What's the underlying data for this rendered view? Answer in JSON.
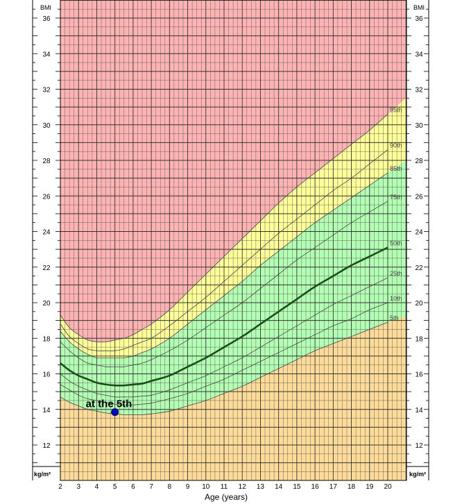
{
  "chart_data": {
    "type": "line",
    "xlabel": "Age (years)",
    "ylabel_left": "BMI",
    "ylabel_right": "BMI",
    "unit_left": "kg/m²",
    "unit_right": "kg/m²",
    "xlim": [
      2,
      20
    ],
    "ylim": [
      10,
      37
    ],
    "x_ticks": [
      2,
      3,
      4,
      5,
      6,
      7,
      8,
      9,
      10,
      11,
      12,
      13,
      14,
      15,
      16,
      17,
      18,
      19,
      20
    ],
    "y_ticks": [
      12,
      14,
      16,
      18,
      20,
      22,
      24,
      26,
      28,
      30,
      32,
      34,
      36
    ],
    "grid": true,
    "x": [
      2,
      2.5,
      3,
      3.5,
      4,
      4.5,
      5,
      5.5,
      6,
      6.5,
      7,
      8,
      9,
      10,
      11,
      12,
      13,
      14,
      15,
      16,
      17,
      18,
      19,
      20,
      21
    ],
    "zone_colors": {
      "obese": "#ffb3b3",
      "overweight": "#ffff99",
      "healthy": "#b3ffb3",
      "underweight": "#ffdb99"
    },
    "series": [
      {
        "name": "95th",
        "values": [
          19.3,
          18.6,
          18.2,
          17.9,
          17.8,
          17.8,
          17.9,
          18.0,
          18.2,
          18.5,
          18.8,
          19.6,
          20.6,
          21.6,
          22.6,
          23.6,
          24.6,
          25.6,
          26.5,
          27.3,
          28.1,
          28.9,
          29.7,
          30.6,
          31.5
        ]
      },
      {
        "name": "90th",
        "values": [
          18.8,
          18.1,
          17.7,
          17.4,
          17.3,
          17.3,
          17.3,
          17.4,
          17.6,
          17.8,
          18.0,
          18.7,
          19.5,
          20.3,
          21.2,
          22.1,
          23.0,
          23.9,
          24.7,
          25.5,
          26.3,
          27.0,
          27.8,
          28.6,
          29.4
        ]
      },
      {
        "name": "85th",
        "values": [
          18.4,
          17.8,
          17.4,
          17.1,
          16.9,
          16.9,
          16.9,
          16.9,
          17.0,
          17.2,
          17.4,
          18.0,
          18.8,
          19.6,
          20.4,
          21.2,
          22.1,
          22.9,
          23.7,
          24.5,
          25.2,
          25.9,
          26.6,
          27.3,
          28.0
        ]
      },
      {
        "name": "75th",
        "values": [
          17.8,
          17.3,
          16.9,
          16.6,
          16.5,
          16.4,
          16.4,
          16.4,
          16.5,
          16.6,
          16.8,
          17.3,
          17.9,
          18.6,
          19.3,
          20.0,
          20.8,
          21.6,
          22.4,
          23.1,
          23.8,
          24.5,
          25.1,
          25.7,
          26.3
        ]
      },
      {
        "name": "50th",
        "values": [
          16.6,
          16.2,
          15.9,
          15.7,
          15.5,
          15.4,
          15.35,
          15.35,
          15.4,
          15.45,
          15.6,
          15.9,
          16.4,
          16.9,
          17.5,
          18.1,
          18.8,
          19.5,
          20.2,
          20.9,
          21.5,
          22.1,
          22.6,
          23.1,
          23.6
        ]
      },
      {
        "name": "25th",
        "values": [
          16.0,
          15.6,
          15.3,
          15.1,
          14.9,
          14.8,
          14.7,
          14.7,
          14.7,
          14.75,
          14.8,
          15.1,
          15.5,
          15.9,
          16.4,
          16.9,
          17.5,
          18.1,
          18.7,
          19.3,
          19.9,
          20.4,
          20.9,
          21.4,
          21.9
        ]
      },
      {
        "name": "10th",
        "values": [
          15.4,
          15.1,
          14.8,
          14.6,
          14.5,
          14.4,
          14.3,
          14.25,
          14.25,
          14.3,
          14.35,
          14.6,
          14.9,
          15.3,
          15.7,
          16.2,
          16.7,
          17.2,
          17.7,
          18.2,
          18.7,
          19.1,
          19.6,
          20.0,
          20.4
        ]
      },
      {
        "name": "5th",
        "values": [
          14.7,
          14.4,
          14.2,
          14.0,
          13.9,
          13.8,
          13.75,
          13.7,
          13.7,
          13.7,
          13.75,
          13.9,
          14.2,
          14.5,
          14.9,
          15.3,
          15.8,
          16.3,
          16.8,
          17.3,
          17.7,
          18.1,
          18.5,
          18.9,
          19.2
        ]
      }
    ],
    "annotation": {
      "text": "at the 5th",
      "x": 5,
      "y": 13.85,
      "point_color": "#0000cc"
    }
  }
}
